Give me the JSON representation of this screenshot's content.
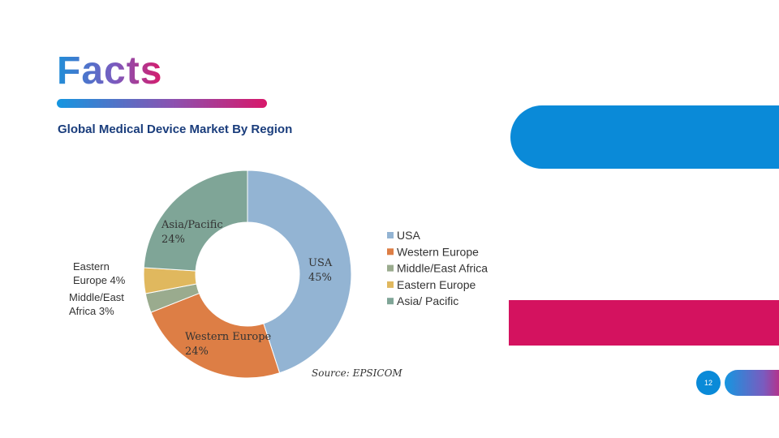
{
  "slide": {
    "title": "Facts",
    "subtitle": "Global Medical Device Market By Region",
    "page_number": "12"
  },
  "colors": {
    "usa": "#93b4d3",
    "western_europe": "#dd7e45",
    "middle_east_africa": "#9aab8e",
    "eastern_europe": "#e0b85e",
    "asia_pacific": "#7fa597",
    "accent_blue": "#0a8ad8",
    "accent_pink": "#d4125f"
  },
  "chart_data": {
    "type": "pie",
    "style": "donut",
    "categories": [
      "USA",
      "Western Europe",
      "Middle/East Africa",
      "Eastern Europe",
      "Asia/ Pacific"
    ],
    "values": [
      45,
      24,
      3,
      4,
      24
    ],
    "colors": [
      "#93b4d3",
      "#dd7e45",
      "#9aab8e",
      "#e0b85e",
      "#7fa597"
    ],
    "data_labels": [
      {
        "name": "USA",
        "value": "45%"
      },
      {
        "name": "Western Europe",
        "value": "24%"
      },
      {
        "name": "Middle/East",
        "name2": "Africa",
        "value": "3%"
      },
      {
        "name": "Eastern",
        "name2": "Europe",
        "value": "4%"
      },
      {
        "name": "Asia/Pacific",
        "value": "24%"
      }
    ],
    "legend": [
      "USA",
      "Western Europe",
      "Middle/East Africa",
      "Eastern Europe",
      "Asia/ Pacific"
    ],
    "legend_position": "right",
    "source": "Source: EPSICOM"
  }
}
